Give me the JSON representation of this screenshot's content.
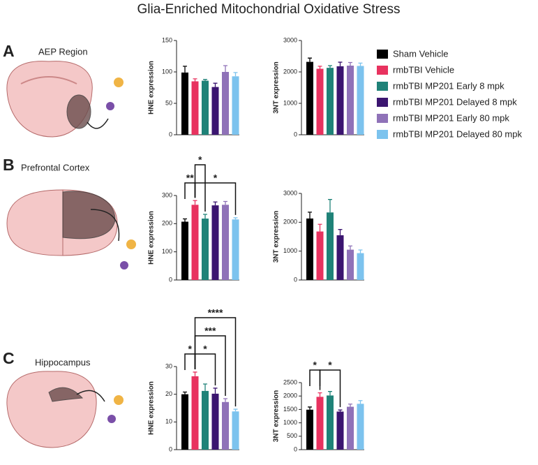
{
  "title": "Glia-Enriched Mitochondrial Oxidative Stress",
  "legend": [
    {
      "name": "Sham Vehicle",
      "color": "#000000"
    },
    {
      "name": "rmbTBI Vehicle",
      "color": "#e8325f"
    },
    {
      "name": "rmbTBI MP201 Early 8 mpk",
      "color": "#1f8278"
    },
    {
      "name": "rmbTBI MP201 Delayed 8 mpk",
      "color": "#3b1570"
    },
    {
      "name": "rmbTBI MP201 Early 80 mpk",
      "color": "#8f72b8"
    },
    {
      "name": "rmbTBI MP201 Delayed 80 mpk",
      "color": "#7cc3ee"
    }
  ],
  "panels": [
    {
      "letter": "A",
      "region": "AEP Region"
    },
    {
      "letter": "B",
      "region": "Prefrontal Cortex"
    },
    {
      "letter": "C",
      "region": "Hippocampus"
    }
  ],
  "chart_data": [
    {
      "type": "bar",
      "ylabel": "HNE expression",
      "values": [
        99,
        85,
        86,
        76,
        100,
        93
      ],
      "errors": [
        10,
        4,
        2,
        6,
        10,
        6
      ],
      "ylim": [
        0,
        150
      ],
      "yticks": [
        0,
        50,
        100,
        150
      ],
      "annotations": []
    },
    {
      "type": "bar",
      "ylabel": "3NT expression",
      "values": [
        2320,
        2100,
        2130,
        2180,
        2200,
        2190
      ],
      "errors": [
        120,
        80,
        70,
        130,
        100,
        90
      ],
      "ylim": [
        0,
        3000
      ],
      "yticks": [
        0,
        1000,
        2000,
        3000
      ],
      "annotations": []
    },
    {
      "type": "bar",
      "ylabel": "HNE expression",
      "values": [
        207,
        267,
        218,
        265,
        267,
        215
      ],
      "errors": [
        10,
        15,
        15,
        12,
        12,
        6
      ],
      "ylim": [
        0,
        300
      ],
      "yticks": [
        0,
        100,
        200,
        300
      ],
      "annotations": [
        {
          "label": "**",
          "from": 0,
          "to": 1
        },
        {
          "label": "*",
          "from": 1,
          "to": 5
        },
        {
          "label": "*",
          "from": 1,
          "to": 2
        }
      ]
    },
    {
      "type": "bar",
      "ylabel": "3NT expression",
      "values": [
        2130,
        1680,
        2340,
        1550,
        1050,
        930
      ],
      "errors": [
        220,
        250,
        450,
        200,
        130,
        110
      ],
      "ylim": [
        0,
        3000
      ],
      "yticks": [
        0,
        1000,
        2000,
        3000
      ],
      "annotations": []
    },
    {
      "type": "bar",
      "ylabel": "HNE expression",
      "values": [
        20,
        26.5,
        21.2,
        20.2,
        17.2,
        13.8
      ],
      "errors": [
        0.8,
        1.5,
        2.5,
        2,
        1.2,
        0.8
      ],
      "ylim": [
        0,
        30
      ],
      "yticks": [
        0,
        10,
        20,
        30
      ],
      "annotations": [
        {
          "label": "*",
          "from": 0,
          "to": 1
        },
        {
          "label": "*",
          "from": 1,
          "to": 3
        },
        {
          "label": "***",
          "from": 1,
          "to": 4
        },
        {
          "label": "****",
          "from": 1,
          "to": 5
        }
      ]
    },
    {
      "type": "bar",
      "ylabel": "3NT expression",
      "values": [
        1490,
        1970,
        2020,
        1420,
        1600,
        1710
      ],
      "errors": [
        100,
        150,
        150,
        60,
        100,
        120
      ],
      "ylim": [
        0,
        2500
      ],
      "yticks": [
        0,
        500,
        1000,
        1500,
        2000,
        2500
      ],
      "annotations": [
        {
          "label": "*",
          "from": 0,
          "to": 1
        },
        {
          "label": "*",
          "from": 1,
          "to": 3
        }
      ]
    }
  ]
}
